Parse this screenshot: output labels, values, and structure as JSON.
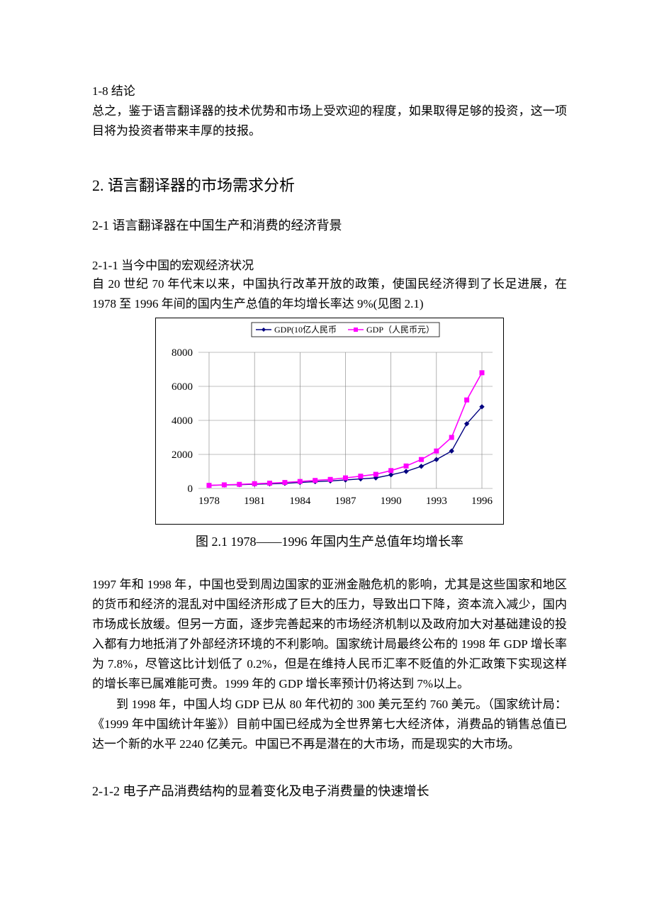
{
  "sec18": {
    "title": "1-8 结论",
    "body": "总之，鉴于语言翻译器的技术优势和市场上受欢迎的程度，如果取得足够的投资，这一项目将为投资者带来丰厚的技报。"
  },
  "sec2": {
    "title": "2. 语言翻译器的市场需求分析"
  },
  "sec21": {
    "title": "2-1 语言翻译器在中国生产和消费的经济背景"
  },
  "sec211": {
    "title": "2-1-1 当今中国的宏观经济状况",
    "p1": "自 20 世纪 70 年代末以来，中国执行改革开放的政策，使国民经济得到了长足进展，在 1978 至 1996 年间的国内生产总值的年均增长率达 9%(见图 2.1)"
  },
  "chart": {
    "type": "line",
    "background_color": "#ffffff",
    "border_color": "#000000",
    "grid_color": "#808080",
    "grid_width": 0.6,
    "legend_border": "#000000",
    "title_fontsize": 14,
    "tick_fontsize": 15,
    "xlim": [
      "1978",
      "1996"
    ],
    "ylim": [
      0,
      8000
    ],
    "ytick_step": 2000,
    "yticks": [
      0,
      2000,
      4000,
      6000,
      8000
    ],
    "x_categories": [
      "1978",
      "1979",
      "1980",
      "1981",
      "1982",
      "1983",
      "1984",
      "1985",
      "1986",
      "1987",
      "1988",
      "1989",
      "1990",
      "1991",
      "1992",
      "1993",
      "1994",
      "1995",
      "1996"
    ],
    "x_label_every": 3,
    "x_labels_shown": [
      "1978",
      "1981",
      "1984",
      "1987",
      "1990",
      "1993",
      "1996"
    ],
    "series": [
      {
        "name": "GDP(10亿人民币",
        "color": "#000080",
        "marker": "diamond",
        "marker_size": 6,
        "line_width": 1.4,
        "data": [
          180,
          200,
          220,
          250,
          270,
          300,
          350,
          400,
          440,
          500,
          560,
          620,
          800,
          1000,
          1300,
          1700,
          2200,
          3800,
          4800
        ]
      },
      {
        "name": "GDP（人民币元）",
        "color": "#ff00ff",
        "marker": "square",
        "marker_size": 6,
        "line_width": 1.6,
        "data": [
          180,
          210,
          240,
          280,
          310,
          350,
          410,
          470,
          530,
          620,
          720,
          830,
          1050,
          1320,
          1700,
          2200,
          3000,
          5200,
          6800
        ]
      }
    ]
  },
  "chart_caption": "图 2.1 1978——1996 年国内生产总值年均增长率",
  "sec_para_1997": {
    "p1": "1997 年和 1998 年，中国也受到周边国家的亚洲金融危机的影响，尤其是这些国家和地区的货币和经济的混乱对中国经济形成了巨大的压力，导致出口下降，资本流入减少，国内市场成长放缓。但另一方面，逐步完善起来的市场经济机制以及政府加大对基础建设的投入都有力地抵消了外部经济环境的不利影响。国家统计局最终公布的 1998 年 GDP 增长率为 7.8%，尽管这比计划低了 0.2%，但是在维持人民币汇率不贬值的外汇政策下实现这样的增长率已属难能可贵。1999 年的 GDP 增长率预计仍将达到 7%以上。",
    "p2": "到 1998 年，中国人均 GDP 已从 80 年代初的 300 美元至约 760 美元。（国家统计局：《1999 年中国统计年鉴》）目前中国已经成为全世界第七大经济体，消费品的销售总值已达一个新的水平 2240 亿美元。中国已不再是潜在的大市场，而是现实的大市场。"
  },
  "sec212": {
    "title": "2-1-2 电子产品消费结构的显着变化及电子消费量的快速增长"
  }
}
